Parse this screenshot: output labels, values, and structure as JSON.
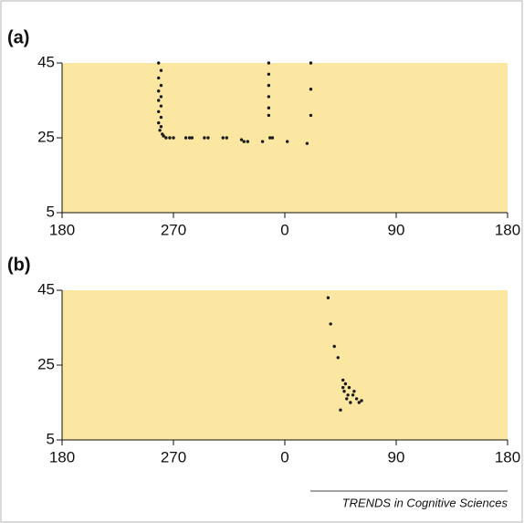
{
  "chart_data": [
    {
      "type": "scatter",
      "title": "(a)",
      "color": "#1a1a1a",
      "background": "#fbe7a1",
      "x": [
        -102,
        -100,
        -102,
        -100,
        -102,
        -100,
        -102,
        -100,
        -102,
        -100,
        -102,
        -100,
        -101,
        -99,
        -98,
        -96,
        -93,
        -90,
        -80,
        -77,
        -75,
        -65,
        -62,
        -50,
        -47,
        -35,
        -33,
        -30,
        -18,
        -12,
        -10,
        2,
        18,
        -13,
        -13,
        -13,
        -13,
        -13,
        -13,
        21,
        21,
        21
      ],
      "y": [
        45,
        43,
        41,
        39,
        37.5,
        36,
        35,
        33.5,
        32,
        30.5,
        29,
        28,
        27,
        26,
        25.5,
        25,
        25,
        25,
        25,
        25,
        25,
        25,
        25,
        25,
        25,
        24.5,
        24,
        24,
        24,
        25,
        25,
        24,
        23.5,
        45,
        42,
        39,
        36,
        33,
        31,
        45,
        38,
        31
      ],
      "xlim": [
        -180,
        180
      ],
      "xticks": [
        {
          "value": -180,
          "label": "180"
        },
        {
          "value": -90,
          "label": "270"
        },
        0,
        90,
        180
      ],
      "ylim": [
        5,
        45
      ],
      "yticks": [
        5,
        25,
        45
      ]
    },
    {
      "type": "scatter",
      "title": "(b)",
      "color": "#1a1a1a",
      "background": "#fbe7a1",
      "x": [
        35,
        37,
        40,
        43,
        47,
        49,
        52,
        48,
        51,
        55,
        58,
        50,
        53,
        60,
        47,
        45,
        56,
        62
      ],
      "y": [
        43,
        36,
        30,
        27,
        21,
        20,
        19,
        18,
        17,
        17,
        16,
        16,
        15,
        15,
        19,
        13,
        18,
        15.5
      ],
      "xlim": [
        -180,
        180
      ],
      "xticks": [
        {
          "value": -180,
          "label": "180"
        },
        {
          "value": -90,
          "label": "270"
        },
        0,
        90,
        180
      ],
      "ylim": [
        5,
        45
      ],
      "yticks": [
        5,
        25,
        45
      ]
    }
  ],
  "footer": "TRENDS in Cognitive Sciences"
}
